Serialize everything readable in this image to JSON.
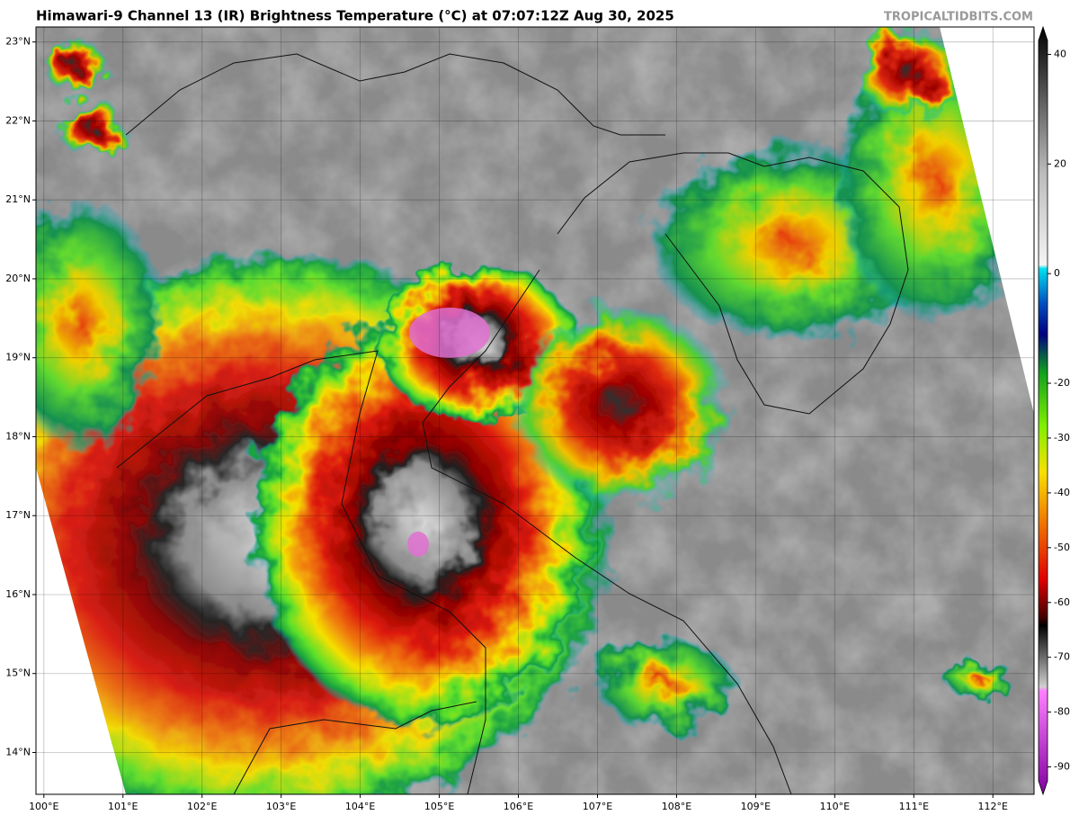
{
  "title": "Himawari-9 Channel 13 (IR) Brightness Temperature (°C) at 07:07:12Z Aug 30, 2025",
  "watermark": "TROPICALTIDBITS.COM",
  "map": {
    "xlim": [
      99.9,
      112.52
    ],
    "ylim": [
      13.47,
      23.19
    ],
    "xticks": [
      {
        "value": 100,
        "label": "100°E"
      },
      {
        "value": 101,
        "label": "101°E"
      },
      {
        "value": 102,
        "label": "102°E"
      },
      {
        "value": 103,
        "label": "103°E"
      },
      {
        "value": 104,
        "label": "104°E"
      },
      {
        "value": 105,
        "label": "105°E"
      },
      {
        "value": 106,
        "label": "106°E"
      },
      {
        "value": 107,
        "label": "107°E"
      },
      {
        "value": 108,
        "label": "108°E"
      },
      {
        "value": 109,
        "label": "109°E"
      },
      {
        "value": 110,
        "label": "110°E"
      },
      {
        "value": 111,
        "label": "111°E"
      },
      {
        "value": 112,
        "label": "112°E"
      }
    ],
    "yticks": [
      {
        "value": 14,
        "label": "14°N"
      },
      {
        "value": 15,
        "label": "15°N"
      },
      {
        "value": 16,
        "label": "16°N"
      },
      {
        "value": 17,
        "label": "17°N"
      },
      {
        "value": 18,
        "label": "18°N"
      },
      {
        "value": 19,
        "label": "19°N"
      },
      {
        "value": 20,
        "label": "20°N"
      },
      {
        "value": 21,
        "label": "21°N"
      },
      {
        "value": 22,
        "label": "22°N"
      },
      {
        "value": 23,
        "label": "23°N"
      }
    ]
  },
  "colorbar": {
    "lim": [
      -95,
      45
    ],
    "ticks": [
      40,
      20,
      0,
      -20,
      -30,
      -40,
      -50,
      -60,
      -70,
      -80,
      -90
    ]
  }
}
